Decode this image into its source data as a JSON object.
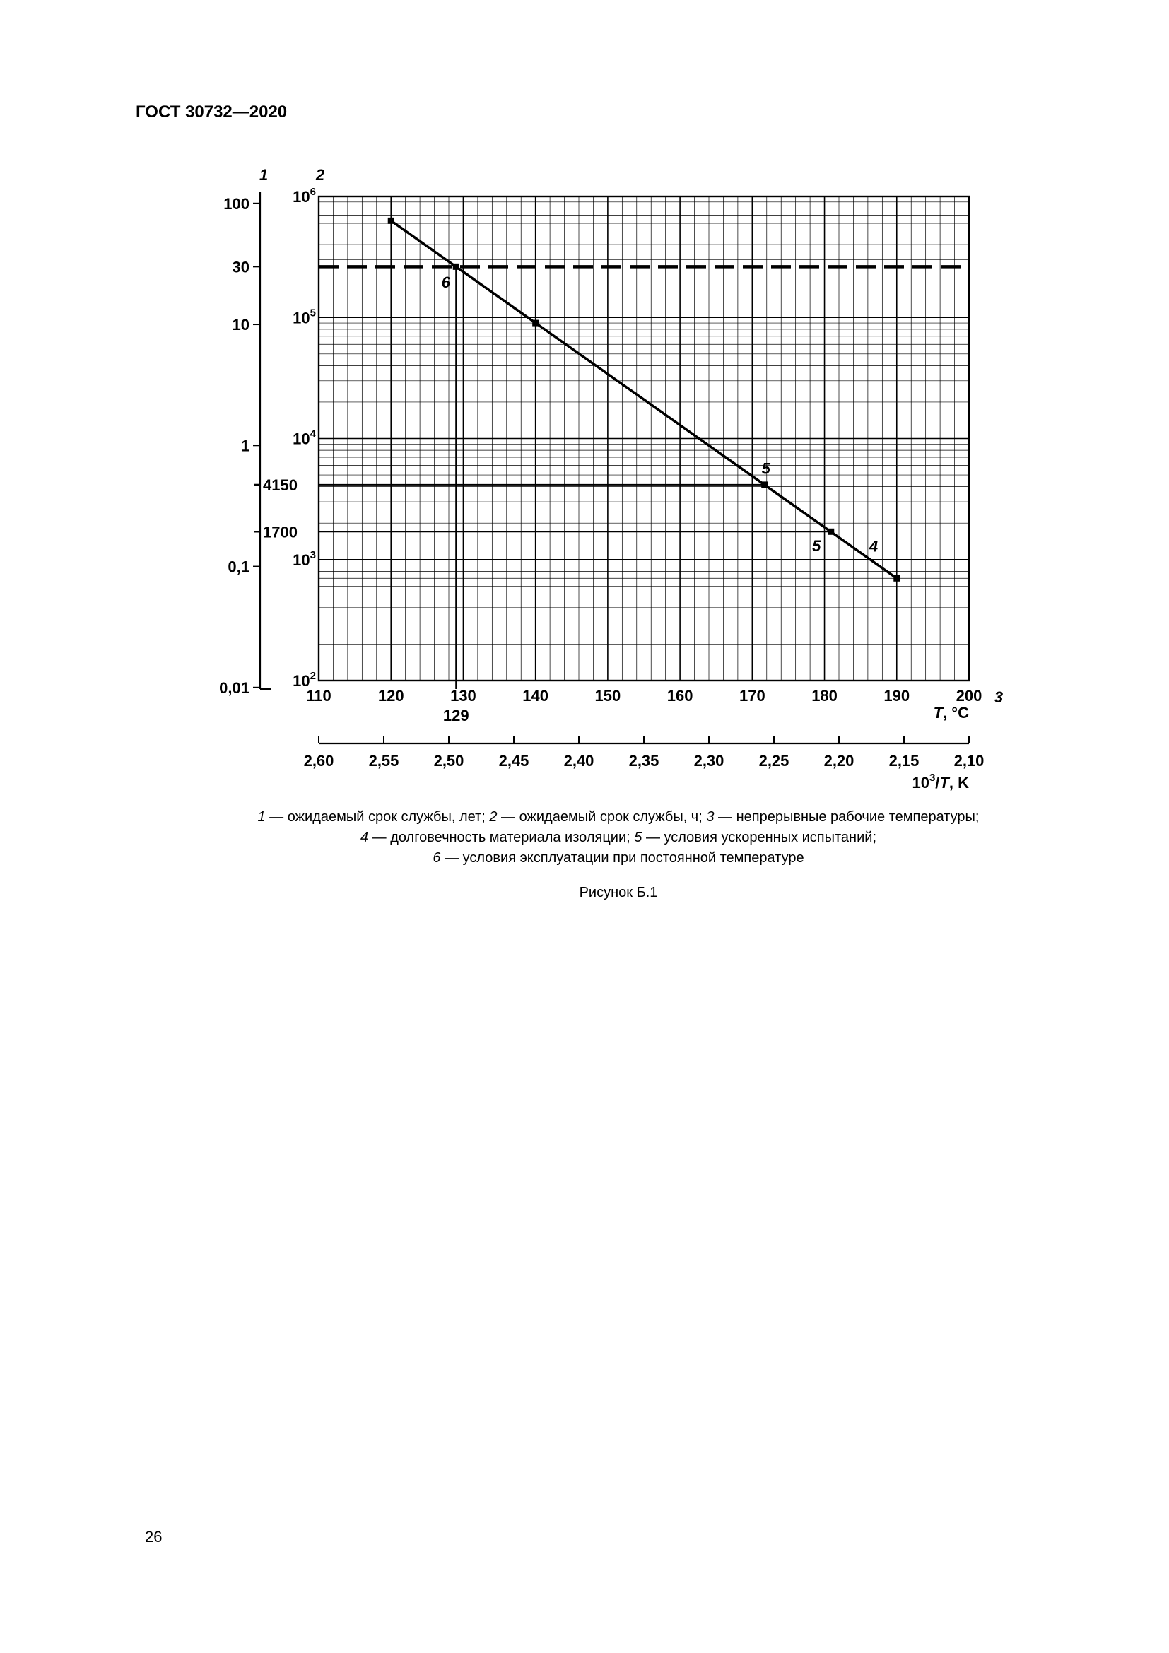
{
  "page": {
    "header": "ГОСТ 30732—2020",
    "page_number": "26"
  },
  "figure": {
    "figure_label": "Рисунок Б.1",
    "caption_lines": [
      [
        {
          "i": "1"
        },
        {
          "t": " — ожидаемый срок службы, лет; "
        },
        {
          "i": "2"
        },
        {
          "t": " — ожидаемый срок службы, ч; "
        },
        {
          "i": "3"
        },
        {
          "t": " — непрерывные рабочие температуры;"
        }
      ],
      [
        {
          "i": "4"
        },
        {
          "t": " — долговечность материала изоляции; "
        },
        {
          "i": "5"
        },
        {
          "t": " — условия ускоренных испытаний;"
        }
      ],
      [
        {
          "i": "6"
        },
        {
          "t": " — условия эксплуатации при постоянной температуре"
        }
      ]
    ]
  },
  "chart_data": {
    "type": "line",
    "title": "Рисунок Б.1",
    "x_axis": {
      "axis_marker": "3",
      "title_italic": "T",
      "title_rest": ", °C",
      "min": 110,
      "max": 200,
      "major_ticks": [
        110,
        120,
        130,
        140,
        150,
        160,
        170,
        180,
        190,
        200
      ],
      "minor_step": 2,
      "special_tick": {
        "value": 129,
        "label": "129"
      }
    },
    "y_axis_hours": {
      "axis_marker": "2",
      "unit": "ч",
      "min_exponent": 2,
      "max_exponent": 6,
      "special_ticks": [
        {
          "value": 4150,
          "label": "4150"
        },
        {
          "value": 1700,
          "label": "1700"
        }
      ]
    },
    "y_axis_years": {
      "axis_marker": "1",
      "unit": "лет",
      "hours_per_year": 8766,
      "ticks": [
        {
          "value": 100,
          "label": "100"
        },
        {
          "value": 30,
          "label": "30"
        },
        {
          "value": 10,
          "label": "10"
        },
        {
          "value": 1,
          "label": "1"
        },
        {
          "value": 0.1,
          "label": "0,1"
        },
        {
          "value": 0.01,
          "label": "0,01"
        }
      ]
    },
    "secondary_x_axis": {
      "title_base": "10",
      "title_sup": "3",
      "title_mid": "/",
      "title_italic": "T",
      "title_rest": ", K",
      "labels": [
        "2,60",
        "2,55",
        "2,50",
        "2,45",
        "2,40",
        "2,35",
        "2,30",
        "2,25",
        "2,20",
        "2,15",
        "2,10"
      ]
    },
    "series": {
      "name": "durability-of-insulation-line",
      "points_T_hours": [
        [
          120,
          630000
        ],
        [
          190,
          700
        ]
      ],
      "markers_T_hours": [
        [
          120,
          630000
        ],
        [
          129,
          262980
        ],
        [
          140,
          90000
        ],
        [
          171.7,
          4150
        ],
        [
          180.9,
          1700
        ],
        [
          190,
          700
        ]
      ]
    },
    "dashed_service_life_years": 30,
    "construction": {
      "vertical_at_T": 129,
      "horizontal_at_hours": [
        4150,
        1700
      ]
    },
    "annotations": [
      {
        "label": "6",
        "T": 127.6,
        "hours": 176000
      },
      {
        "label": "5",
        "T": 171.9,
        "hours": 5100
      },
      {
        "label": "5",
        "T": 178.9,
        "hours": 1170
      },
      {
        "label": "4",
        "T": 186.8,
        "hours": 1160
      }
    ]
  }
}
